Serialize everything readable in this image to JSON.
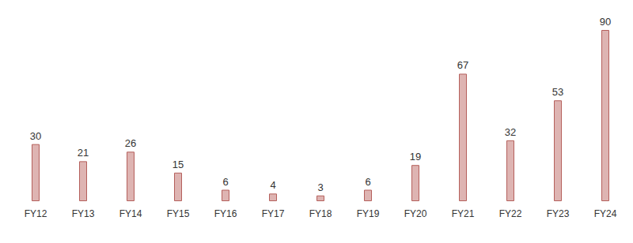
{
  "chart_data": {
    "type": "bar",
    "categories": [
      "FY12",
      "FY13",
      "FY14",
      "FY15",
      "FY16",
      "FY17",
      "FY18",
      "FY19",
      "FY20",
      "FY21",
      "FY22",
      "FY23",
      "FY24"
    ],
    "values": [
      30,
      21,
      26,
      15,
      6,
      4,
      3,
      6,
      19,
      67,
      32,
      53,
      90
    ],
    "color": "#deb4b2",
    "ylim": [
      0,
      90
    ],
    "grid": false,
    "data_labels": true,
    "tick_labels": "x"
  }
}
